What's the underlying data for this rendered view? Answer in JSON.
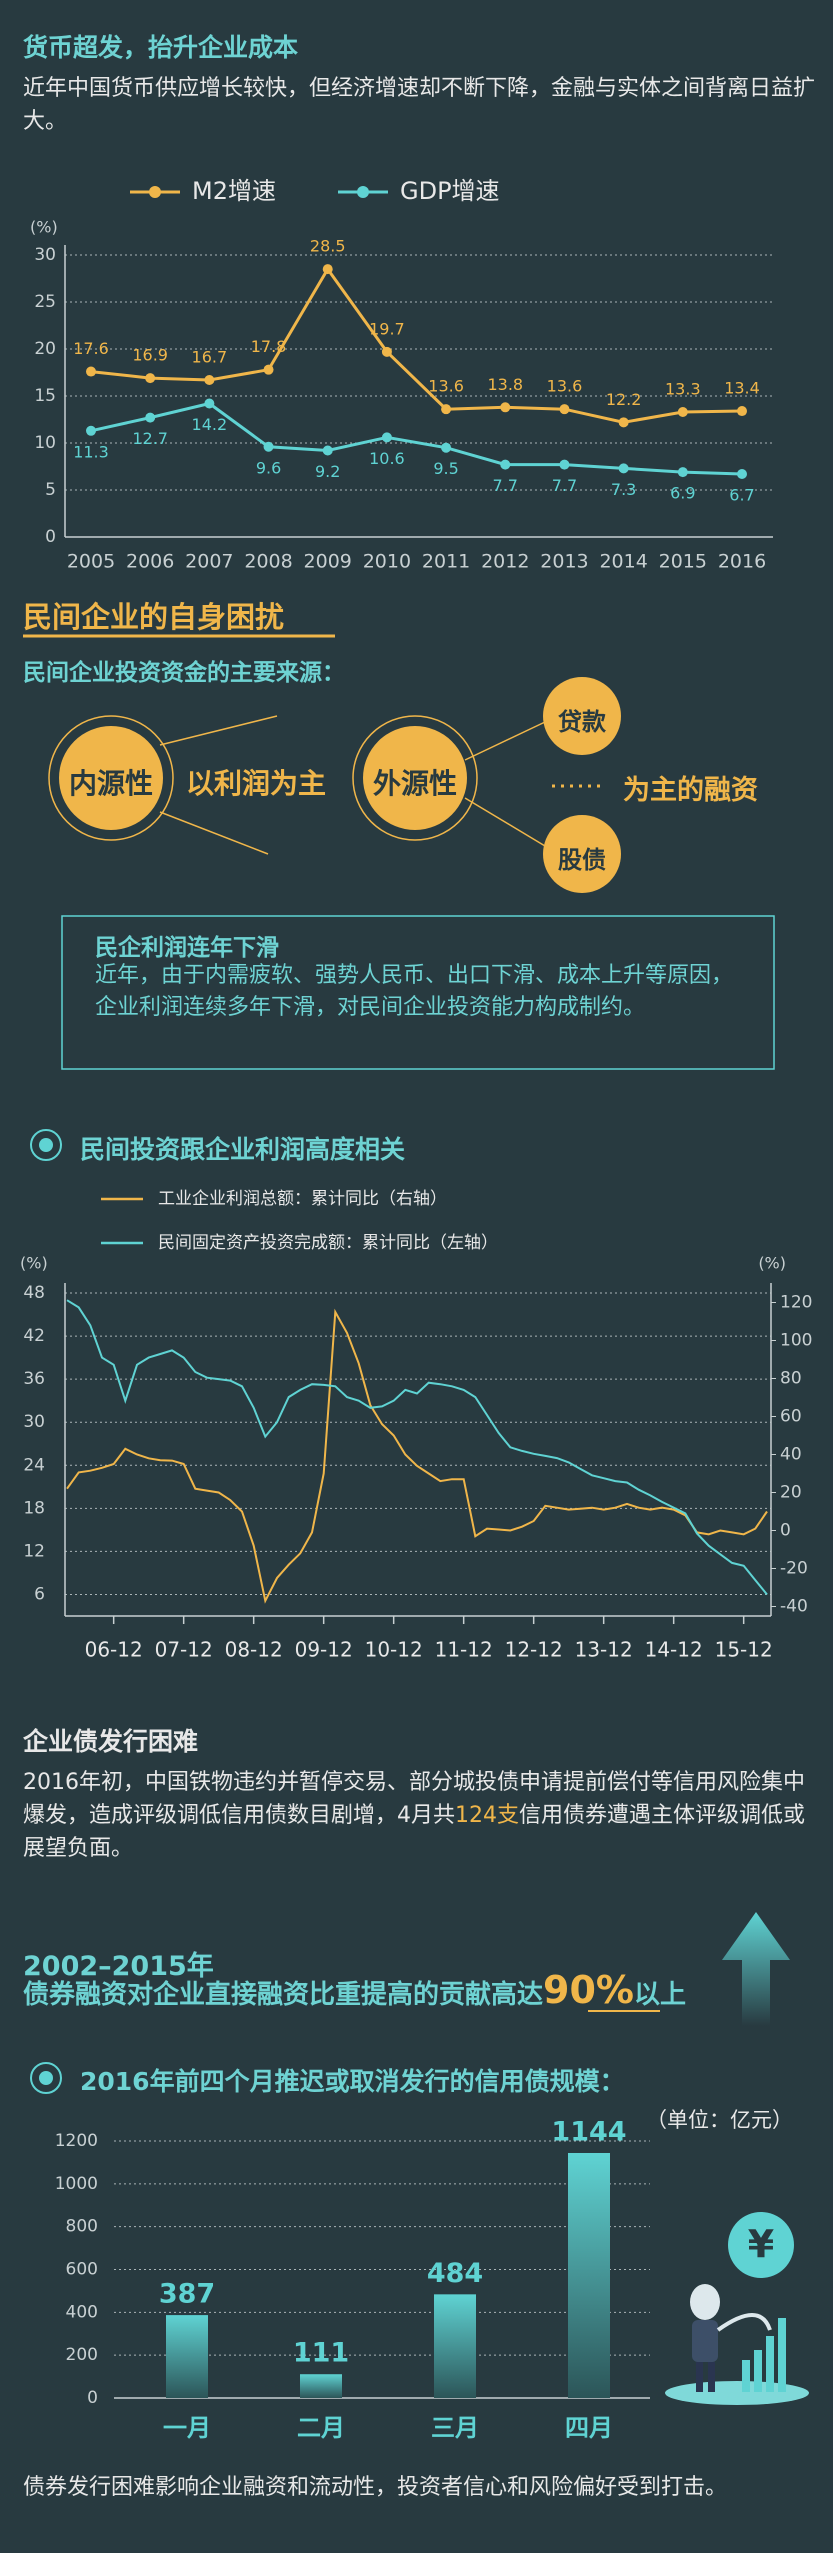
{
  "section1": {
    "title": "货币超发，抬升企业成本",
    "text": "近年中国货币供应增长较快，但经济增速却不断下降，金融与实体之间背离日益扩大。"
  },
  "section2": {
    "heading": "民间企业的自身困扰",
    "subheading": "民间企业投资资金的主要来源：",
    "internal": "内源性",
    "internal_note": "以利润为主",
    "external": "外源性",
    "external_sources": [
      "贷款",
      "股债"
    ],
    "external_note": "为主的融资",
    "box_title": "民企利润连年下滑",
    "box_text": "近年，由于内需疲软、强势人民币、出口下滑、成本上升等原因，企业利润连续多年下滑，对民间企业投资能力构成制约。"
  },
  "chart_data": [
    {
      "type": "line",
      "y_unit": "(%)",
      "categories": [
        "2005",
        "2006",
        "2007",
        "2008",
        "2009",
        "2010",
        "2011",
        "2012",
        "2013",
        "2014",
        "2015",
        "2016"
      ],
      "series": [
        {
          "name": "M2增速",
          "color": "#f0b64a",
          "values": [
            17.6,
            16.9,
            16.7,
            17.8,
            28.5,
            19.7,
            13.6,
            13.8,
            13.6,
            12.2,
            13.3,
            13.4
          ]
        },
        {
          "name": "GDP增速",
          "color": "#5fd3d3",
          "values": [
            11.3,
            12.7,
            14.2,
            9.6,
            9.2,
            10.6,
            9.5,
            7.7,
            7.7,
            7.3,
            6.9,
            6.7
          ]
        }
      ],
      "ylim": [
        0,
        30
      ],
      "yticks": [
        0,
        5,
        10,
        15,
        20,
        25,
        30
      ],
      "grid": true,
      "value_labels_shown": true
    },
    {
      "type": "line",
      "title": "民间投资跟企业利润高度相关",
      "y_unit": "(%)",
      "y2_unit": "(%)",
      "x": [
        "06-04",
        "06-06",
        "06-08",
        "06-10",
        "06-12",
        "07-02",
        "07-04",
        "07-06",
        "07-08",
        "07-10",
        "07-12",
        "08-02",
        "08-04",
        "08-06",
        "08-08",
        "08-10",
        "08-12",
        "09-02",
        "09-04",
        "09-06",
        "09-08",
        "09-10",
        "09-12",
        "10-02",
        "10-04",
        "10-06",
        "10-08",
        "10-10",
        "10-12",
        "11-02",
        "11-04",
        "11-06",
        "11-08",
        "11-10",
        "11-12",
        "12-02",
        "12-04",
        "12-06",
        "12-08",
        "12-10",
        "12-12",
        "13-02",
        "13-04",
        "13-06",
        "13-08",
        "13-10",
        "13-12",
        "14-02",
        "14-04",
        "14-06",
        "14-08",
        "14-10",
        "14-12",
        "15-02",
        "15-04",
        "15-06",
        "15-08",
        "15-10",
        "15-12",
        "16-02",
        "16-04"
      ],
      "series": [
        {
          "name": "工业企业利润总额：累计同比（右轴）",
          "color": "#f0b64a",
          "axis": "y2",
          "values": [
            22,
            30.6,
            31.5,
            33,
            35,
            43,
            40,
            38,
            37,
            36.8,
            35,
            22,
            21,
            20,
            16,
            10,
            -8,
            -37,
            -25,
            -18,
            -12,
            -1,
            30,
            115,
            104,
            88,
            66,
            56,
            50,
            40,
            34,
            30,
            26,
            27,
            27,
            -3,
            1,
            0.5,
            0,
            2,
            5,
            13,
            12,
            11,
            11.5,
            12,
            11,
            12,
            14,
            12,
            11,
            12,
            11,
            8,
            -1,
            -2,
            0,
            -1,
            -2,
            1,
            10
          ]
        },
        {
          "name": "民间固定资产投资完成额：累计同比（左轴）",
          "color": "#5fd3d3",
          "values": [
            47,
            46,
            43.5,
            39,
            38,
            33,
            38,
            39,
            39.5,
            40,
            39,
            37,
            36.2,
            36,
            35.8,
            35,
            32,
            28,
            30,
            33.5,
            34.5,
            35.3,
            35.2,
            35,
            33.5,
            33,
            32,
            32.2,
            33,
            34.5,
            34,
            35.5,
            35.3,
            35,
            34.5,
            33.5,
            31,
            28.5,
            26.5,
            26,
            25.6,
            25.3,
            25,
            24.4,
            23.5,
            22.6,
            22.2,
            21.8,
            21.6,
            20.6,
            19.8,
            18.9,
            18.1,
            17.3,
            14.5,
            12.8,
            11.6,
            10.4,
            10,
            8,
            6
          ]
        }
      ],
      "xticks": [
        "06-12",
        "07-12",
        "08-12",
        "09-12",
        "10-12",
        "11-12",
        "12-12",
        "13-12",
        "14-12",
        "15-12"
      ],
      "ylim": [
        3,
        48
      ],
      "yticks": [
        6,
        12,
        18,
        24,
        30,
        36,
        42,
        48
      ],
      "y2lim": [
        -45,
        125
      ],
      "y2ticks": [
        -40,
        -20,
        0,
        20,
        40,
        60,
        80,
        100,
        120
      ],
      "grid": true
    },
    {
      "type": "bar",
      "title": "2016年前四个月推迟或取消发行的信用债规模：",
      "unit": "（单位：亿元）",
      "categories": [
        "一月",
        "二月",
        "三月",
        "四月"
      ],
      "values": [
        387,
        111,
        484,
        1144
      ],
      "color": "#5fd3d3",
      "ylim": [
        0,
        1200
      ],
      "yticks": [
        0,
        200,
        400,
        600,
        800,
        1000,
        1200
      ],
      "grid": true
    }
  ],
  "section3": {
    "title": "企业债发行困难",
    "text_parts": [
      "2016年初，中国铁物违约并暂停交易、部分城投债申请提前偿付等信用风险集中爆发，造成评级调低信用债数目剧增，4月共",
      "124支",
      "信用债券遭遇主体评级调低或展望负面。"
    ]
  },
  "section4": {
    "years": "2002–2015年",
    "text": "债券融资对企业直接融资比重提高的贡献高达",
    "highlight": "90%",
    "suffix": "以上"
  },
  "icon_symbol": "¥",
  "footer": "债券发行困难影响企业融资和流动性，投资者信心和风险偏好受到打击。"
}
